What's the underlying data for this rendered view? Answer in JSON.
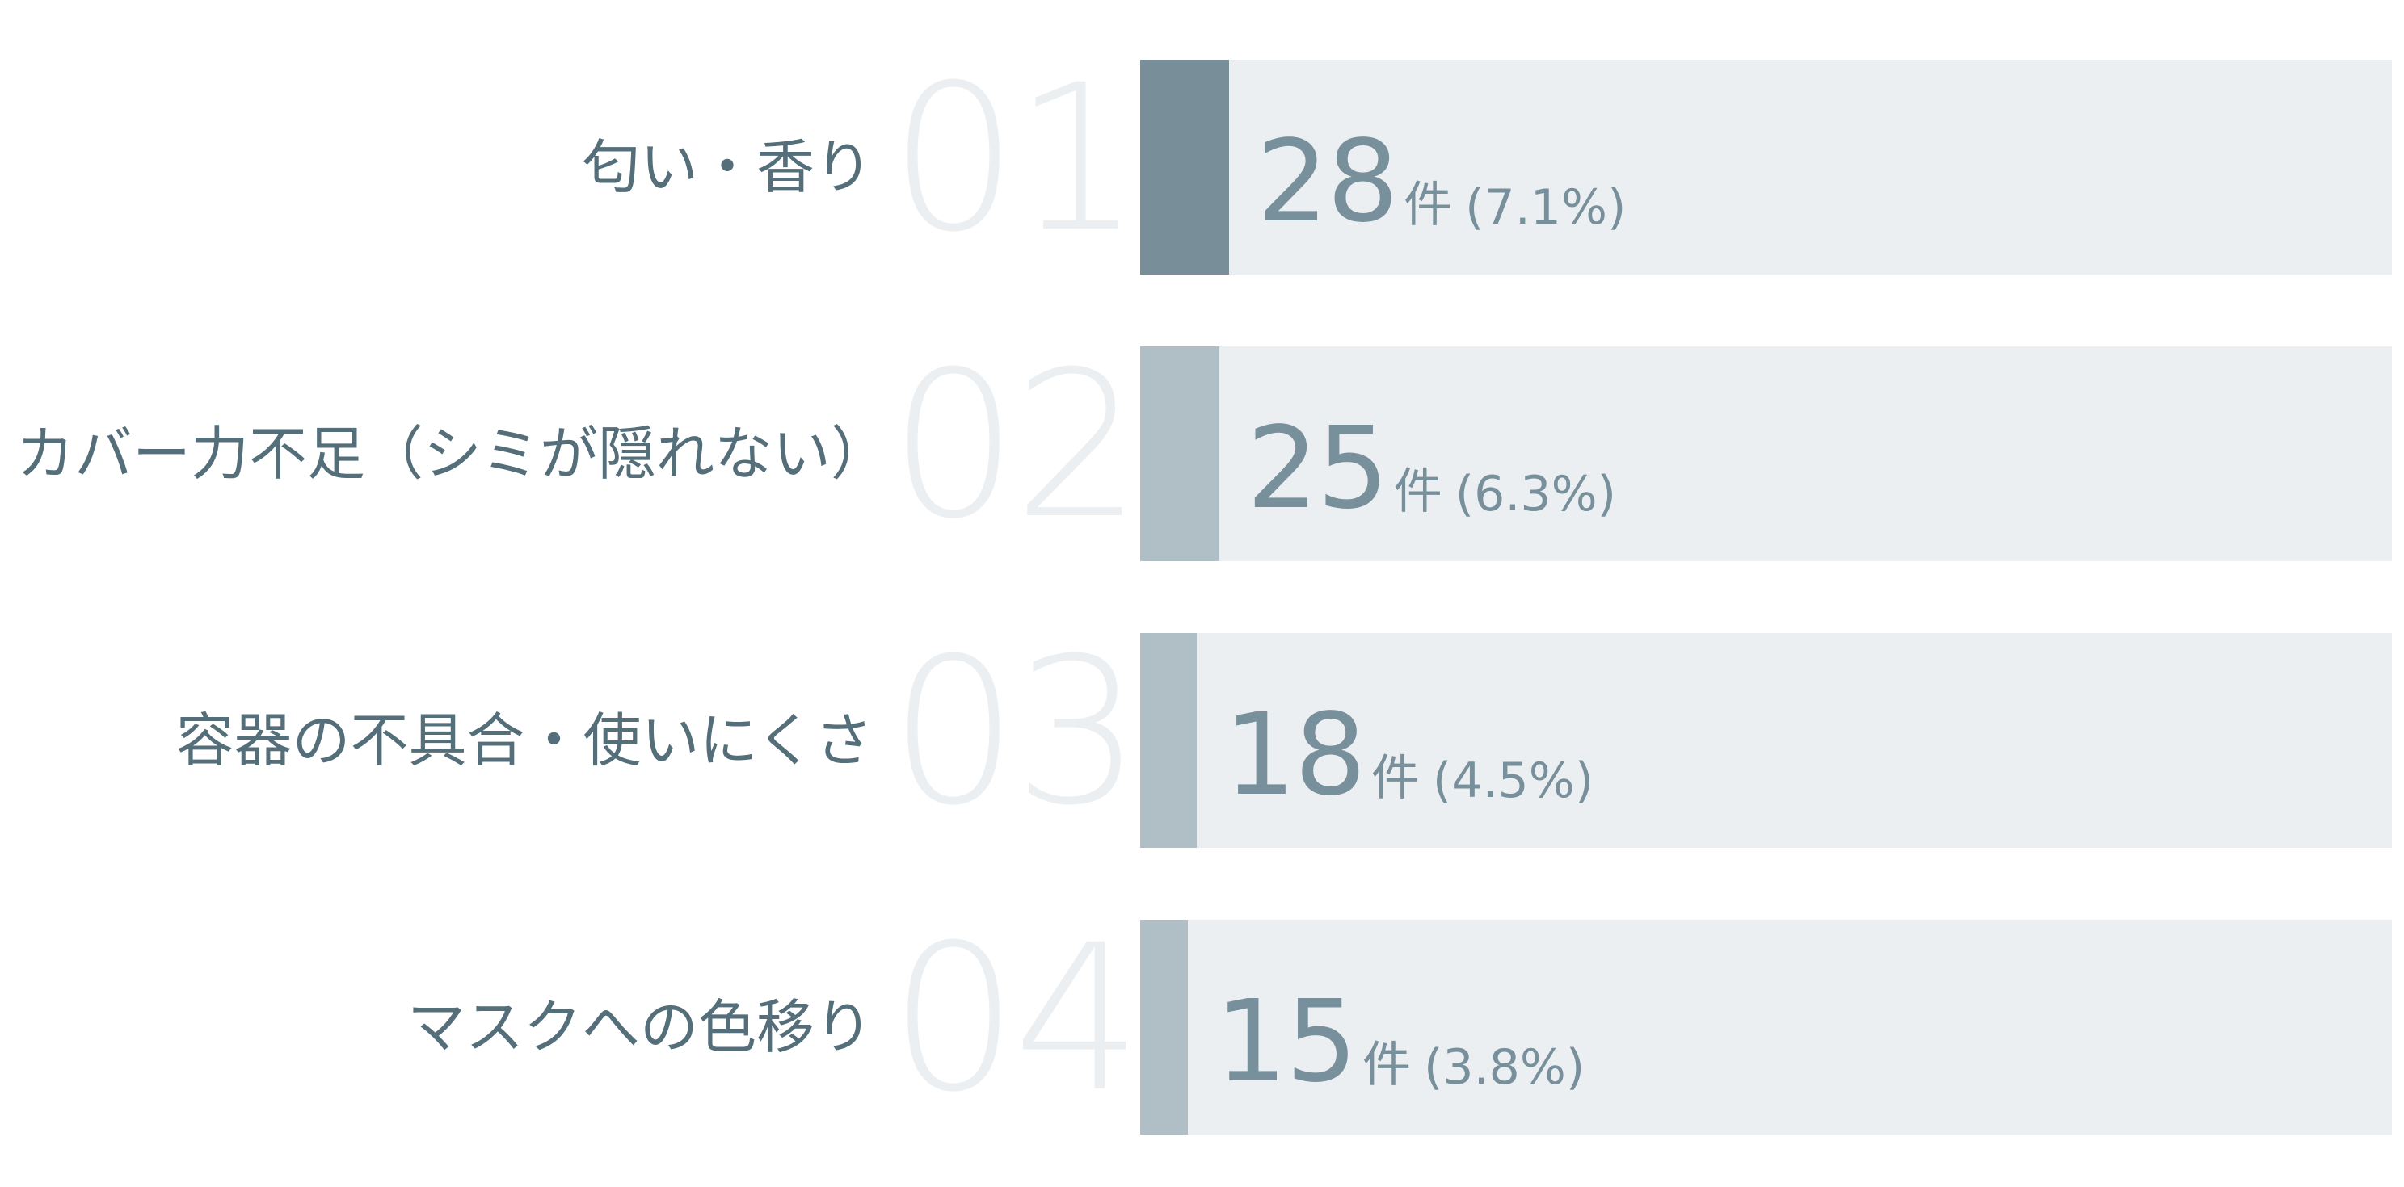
{
  "chart_data": {
    "type": "bar",
    "orientation": "horizontal",
    "unit": "件",
    "categories": [
      "匂い・香り",
      "カバー力不足（シミが隠れない）",
      "容器の不具合・使いにくさ",
      "マスクへの色移り"
    ],
    "ranks": [
      "01",
      "02",
      "03",
      "04"
    ],
    "values": [
      28,
      25,
      18,
      15
    ],
    "percent_labels": [
      "(7.1%)",
      "(6.3%)",
      "(4.5%)",
      "(3.8%)"
    ],
    "percents": [
      7.1,
      6.3,
      4.5,
      3.8
    ],
    "xlim": [
      0,
      100
    ],
    "grid": false,
    "colors": {
      "top": "#788f9a",
      "other": "#b0bec5",
      "track": "#eceff1",
      "label": "#546e7a",
      "value": "#78909c",
      "rank": "#eceff1"
    }
  }
}
